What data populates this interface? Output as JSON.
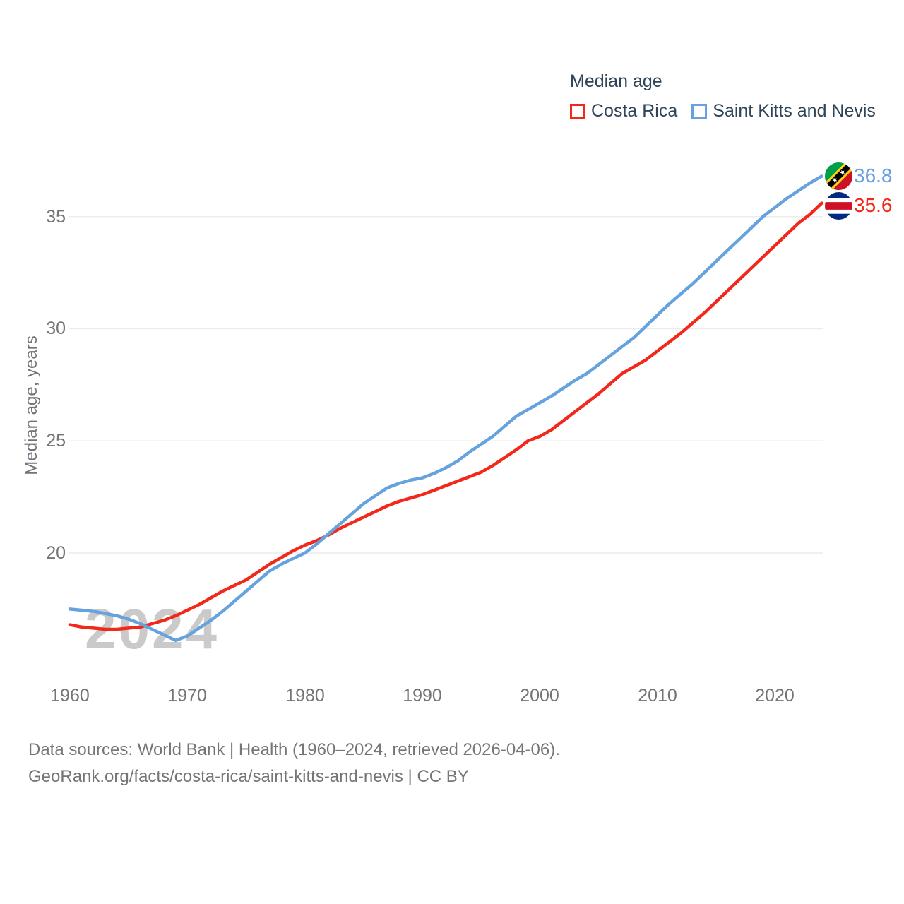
{
  "legend": {
    "title": "Median age",
    "items": [
      {
        "label": "Costa Rica"
      },
      {
        "label": "Saint Kitts and Nevis"
      }
    ]
  },
  "end_labels": [
    {
      "series": "Saint Kitts and Nevis",
      "value": "36.8",
      "color": "#66a3de",
      "flag": "saint-kitts-and-nevis-flag"
    },
    {
      "series": "Costa Rica",
      "value": "35.6",
      "color": "#f2281a",
      "flag": "costa-rica-flag"
    }
  ],
  "watermark": "2024",
  "axes": {
    "y_title": "Median age, years"
  },
  "footer": {
    "line1": "Data sources: World Bank | Health (1960–2024, retrieved 2026-04-06).",
    "line2": "GeoRank.org/facts/costa-rica/saint-kitts-and-nevis | CC BY"
  },
  "chart_data": {
    "type": "line",
    "title": "Median age",
    "xlabel": "",
    "ylabel": "Median age, years",
    "grid": "horizontal",
    "legend_position": "top-right",
    "xlim": [
      1960,
      2024
    ],
    "ylim": [
      15.5,
      37.5
    ],
    "xticks": [
      1960,
      1970,
      1980,
      1990,
      2000,
      2010,
      2020
    ],
    "yticks": [
      20,
      25,
      30,
      35
    ],
    "x": [
      1960,
      1961,
      1962,
      1963,
      1964,
      1965,
      1966,
      1967,
      1968,
      1969,
      1970,
      1971,
      1972,
      1973,
      1974,
      1975,
      1976,
      1977,
      1978,
      1979,
      1980,
      1981,
      1982,
      1983,
      1984,
      1985,
      1986,
      1987,
      1988,
      1989,
      1990,
      1991,
      1992,
      1993,
      1994,
      1995,
      1996,
      1997,
      1998,
      1999,
      2000,
      2001,
      2002,
      2003,
      2004,
      2005,
      2006,
      2007,
      2008,
      2009,
      2010,
      2011,
      2012,
      2013,
      2014,
      2015,
      2016,
      2017,
      2018,
      2019,
      2020,
      2021,
      2022,
      2023,
      2024
    ],
    "series": [
      {
        "name": "Costa Rica",
        "color": "#f2281a",
        "end_value": 35.6,
        "values": [
          16.8,
          16.7,
          16.65,
          16.6,
          16.6,
          16.65,
          16.7,
          16.85,
          17.0,
          17.2,
          17.45,
          17.7,
          18.0,
          18.3,
          18.55,
          18.8,
          19.15,
          19.5,
          19.8,
          20.1,
          20.35,
          20.55,
          20.8,
          21.1,
          21.35,
          21.6,
          21.85,
          22.1,
          22.3,
          22.45,
          22.6,
          22.8,
          23.0,
          23.2,
          23.4,
          23.6,
          23.9,
          24.25,
          24.6,
          25.0,
          25.2,
          25.5,
          25.9,
          26.3,
          26.7,
          27.1,
          27.55,
          28.0,
          28.3,
          28.6,
          29.0,
          29.4,
          29.8,
          30.25,
          30.7,
          31.2,
          31.7,
          32.2,
          32.7,
          33.2,
          33.7,
          34.2,
          34.7,
          35.1,
          35.6
        ]
      },
      {
        "name": "Saint Kitts and Nevis",
        "color": "#66a3de",
        "end_value": 36.8,
        "values": [
          17.5,
          17.45,
          17.4,
          17.3,
          17.2,
          17.05,
          16.85,
          16.6,
          16.35,
          16.1,
          16.3,
          16.65,
          17.0,
          17.4,
          17.85,
          18.3,
          18.75,
          19.2,
          19.5,
          19.75,
          20.0,
          20.4,
          20.85,
          21.3,
          21.75,
          22.2,
          22.55,
          22.9,
          23.1,
          23.25,
          23.35,
          23.55,
          23.8,
          24.1,
          24.5,
          24.85,
          25.2,
          25.65,
          26.1,
          26.4,
          26.7,
          27.0,
          27.35,
          27.7,
          28.0,
          28.4,
          28.8,
          29.2,
          29.6,
          30.1,
          30.6,
          31.1,
          31.55,
          32.0,
          32.5,
          33.0,
          33.5,
          34.0,
          34.5,
          35.0,
          35.4,
          35.8,
          36.15,
          36.5,
          36.8
        ]
      }
    ]
  }
}
